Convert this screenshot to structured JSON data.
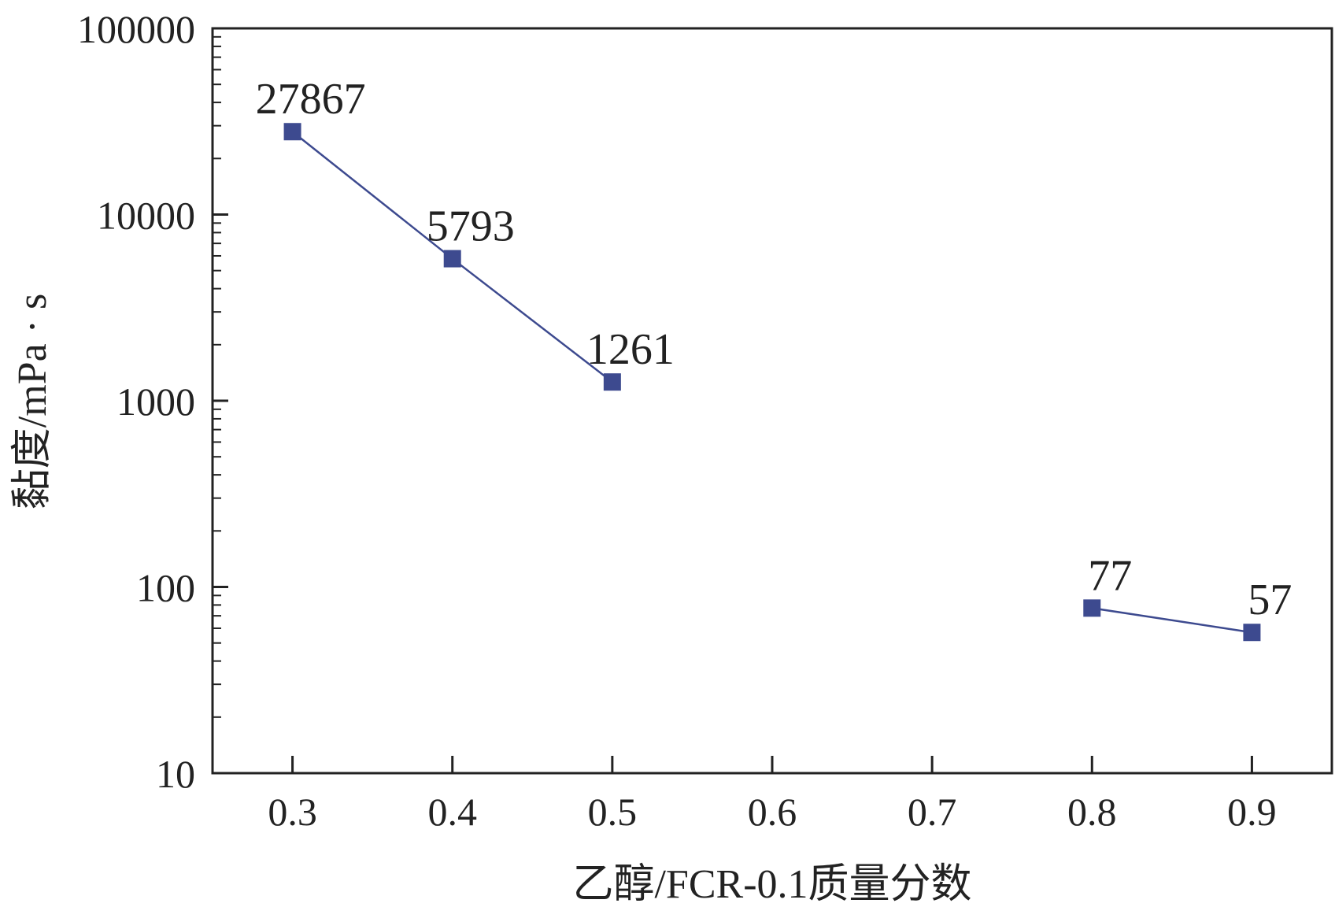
{
  "chart_data": {
    "type": "line",
    "xlabel": "乙醇/FCR-0.1质量分数",
    "ylabel": "黏度/mPa · s",
    "xlim": [
      0.25,
      0.95
    ],
    "ylim": [
      10,
      100000
    ],
    "yscale": "log",
    "x_ticks": [
      "0.3",
      "0.4",
      "0.5",
      "0.6",
      "0.7",
      "0.8",
      "0.9"
    ],
    "y_ticks": [
      "10",
      "100",
      "1000",
      "10000",
      "100000"
    ],
    "grid": false,
    "series": [
      {
        "segments": [
          [
            {
              "x": 0.3,
              "y": 27867,
              "label": "27867"
            },
            {
              "x": 0.4,
              "y": 5793,
              "label": "5793"
            },
            {
              "x": 0.5,
              "y": 1261,
              "label": "1261"
            }
          ],
          [
            {
              "x": 0.8,
              "y": 77,
              "label": "77"
            },
            {
              "x": 0.9,
              "y": 57,
              "label": "57"
            }
          ]
        ],
        "marker": "square",
        "color": "#3d4a8f"
      }
    ]
  }
}
